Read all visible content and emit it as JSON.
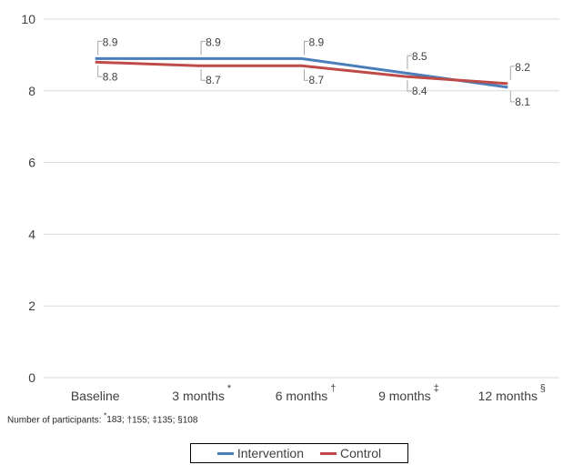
{
  "chart_data": {
    "type": "line",
    "categories": [
      "Baseline",
      "3 months",
      "6 months",
      "9 months",
      "12 months"
    ],
    "category_marks": [
      "",
      "*",
      "†",
      "‡",
      "§"
    ],
    "series": [
      {
        "name": "Intervention",
        "values": [
          8.9,
          8.9,
          8.9,
          8.5,
          8.1
        ],
        "color": "#4a7ebb"
      },
      {
        "name": "Control",
        "values": [
          8.8,
          8.7,
          8.7,
          8.4,
          8.2
        ],
        "color": "#be4b48"
      }
    ],
    "y_ticks": [
      "0",
      "2",
      "4",
      "6",
      "8",
      "10"
    ],
    "ylim": [
      0,
      10
    ],
    "grid": true,
    "legend_position": "bottom",
    "footnote": {
      "prefix": "Number of participants:",
      "items": [
        {
          "mark": "*",
          "text": "183;"
        },
        {
          "mark": "†",
          "text": "155;"
        },
        {
          "mark": "‡",
          "text": "135;"
        },
        {
          "mark": "§",
          "text": "108"
        }
      ]
    }
  }
}
